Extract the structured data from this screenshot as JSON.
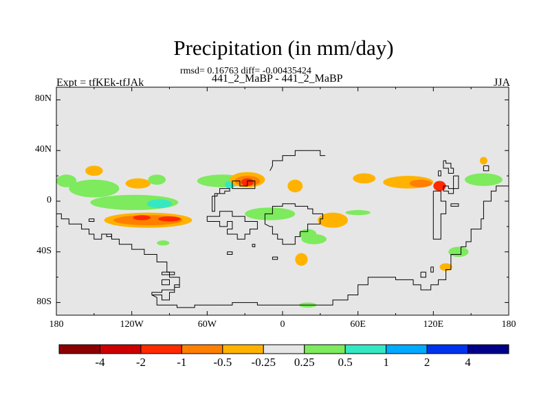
{
  "title": "Precipitation (in mm/day)",
  "stats": "rmsd= 0.16763 diff= -0.00435424",
  "case_line": "441_2_MaBP - 441_2_MaBP",
  "left_label": "Expt = tfKEk-tfJAk",
  "right_label": "JJA",
  "map": {
    "projection": "cylindrical-equidistant",
    "lon_range": [
      -180,
      180
    ],
    "lat_range": [
      -90,
      90
    ],
    "x_ticks": [
      {
        "lon": -180,
        "label": "180"
      },
      {
        "lon": -120,
        "label": "120W"
      },
      {
        "lon": -60,
        "label": "60W"
      },
      {
        "lon": 0,
        "label": "0"
      },
      {
        "lon": 60,
        "label": "60E"
      },
      {
        "lon": 120,
        "label": "120E"
      },
      {
        "lon": 180,
        "label": "180"
      }
    ],
    "y_ticks": [
      {
        "lat": 80,
        "label": "80N"
      },
      {
        "lat": 40,
        "label": "40N"
      },
      {
        "lat": 0,
        "label": "0"
      },
      {
        "lat": -40,
        "label": "40S"
      },
      {
        "lat": -80,
        "label": "80S"
      }
    ],
    "colors": {
      "background": "#e6e6e6",
      "frame": "#000000",
      "coastline": "#000000"
    }
  },
  "colorbar": {
    "colors": [
      "#8b0000",
      "#cc0000",
      "#ff2a00",
      "#ff7f00",
      "#ffb300",
      "#e6e6e6",
      "#7eea5e",
      "#36e8c2",
      "#00aaff",
      "#0033ee",
      "#000088"
    ],
    "labels": [
      "-4",
      "-2",
      "-1",
      "-0.5",
      "-0.25",
      "0.25",
      "0.5",
      "1",
      "2",
      "4"
    ]
  },
  "anomalies": [
    {
      "cat": "pos1",
      "color": "#7eea5e",
      "lon": -172,
      "lat": 16,
      "w": 16,
      "h": 10
    },
    {
      "cat": "pos1",
      "color": "#7eea5e",
      "lon": -150,
      "lat": 10,
      "w": 40,
      "h": 14
    },
    {
      "cat": "pos1",
      "color": "#7eea5e",
      "lon": -118,
      "lat": -1,
      "w": 70,
      "h": 12
    },
    {
      "cat": "pos2",
      "color": "#36e8c2",
      "lon": -98,
      "lat": -2,
      "w": 20,
      "h": 7
    },
    {
      "cat": "pos1",
      "color": "#7eea5e",
      "lon": -48,
      "lat": 16,
      "w": 40,
      "h": 10
    },
    {
      "cat": "pos2",
      "color": "#36e8c2",
      "lon": -42,
      "lat": 13,
      "w": 8,
      "h": 6
    },
    {
      "cat": "neg1",
      "color": "#ffb300",
      "lon": -150,
      "lat": 24,
      "w": 14,
      "h": 8
    },
    {
      "cat": "neg1",
      "color": "#ffb300",
      "lon": -115,
      "lat": 14,
      "w": 20,
      "h": 8
    },
    {
      "cat": "neg1",
      "color": "#ffb300",
      "lon": -107,
      "lat": -15,
      "w": 70,
      "h": 12
    },
    {
      "cat": "neg2",
      "color": "#ff7f00",
      "lon": -107,
      "lat": -15,
      "w": 55,
      "h": 8
    },
    {
      "cat": "neg3",
      "color": "#ff2a00",
      "lon": -90,
      "lat": -14,
      "w": 18,
      "h": 4
    },
    {
      "cat": "neg3",
      "color": "#ff2a00",
      "lon": -112,
      "lat": -13,
      "w": 14,
      "h": 4
    },
    {
      "cat": "neg1",
      "color": "#ffb300",
      "lon": -28,
      "lat": 17,
      "w": 28,
      "h": 12
    },
    {
      "cat": "neg2",
      "color": "#ff7f00",
      "lon": -28,
      "lat": 16,
      "w": 20,
      "h": 8
    },
    {
      "cat": "neg3",
      "color": "#ff2a00",
      "lon": -28,
      "lat": 15,
      "w": 10,
      "h": 6
    },
    {
      "cat": "neg1",
      "color": "#ffb300",
      "lon": 10,
      "lat": 12,
      "w": 12,
      "h": 10
    },
    {
      "cat": "pos1",
      "color": "#7eea5e",
      "lon": -10,
      "lat": -10,
      "w": 40,
      "h": 10
    },
    {
      "cat": "pos1",
      "color": "#7eea5e",
      "lon": 20,
      "lat": -26,
      "w": 14,
      "h": 8
    },
    {
      "cat": "pos1",
      "color": "#7eea5e",
      "lon": 25,
      "lat": -30,
      "w": 20,
      "h": 8
    },
    {
      "cat": "neg1",
      "color": "#ffb300",
      "lon": 40,
      "lat": -15,
      "w": 24,
      "h": 12
    },
    {
      "cat": "pos1",
      "color": "#7eea5e",
      "lon": 60,
      "lat": -9,
      "w": 20,
      "h": 4
    },
    {
      "cat": "neg1",
      "color": "#ffb300",
      "lon": 15,
      "lat": -46,
      "w": 10,
      "h": 10
    },
    {
      "cat": "neg1",
      "color": "#ffb300",
      "lon": 65,
      "lat": 18,
      "w": 18,
      "h": 8
    },
    {
      "cat": "neg1",
      "color": "#ffb300",
      "lon": 100,
      "lat": 15,
      "w": 40,
      "h": 10
    },
    {
      "cat": "neg2",
      "color": "#ff7f00",
      "lon": 110,
      "lat": 14,
      "w": 18,
      "h": 6
    },
    {
      "cat": "neg3",
      "color": "#ff2a00",
      "lon": 125,
      "lat": 12,
      "w": 10,
      "h": 8
    },
    {
      "cat": "pos1",
      "color": "#7eea5e",
      "lon": 160,
      "lat": 17,
      "w": 30,
      "h": 10
    },
    {
      "cat": "pos1",
      "color": "#7eea5e",
      "lon": -100,
      "lat": 17,
      "w": 14,
      "h": 8
    },
    {
      "cat": "pos1",
      "color": "#7eea5e",
      "lon": -95,
      "lat": -33,
      "w": 10,
      "h": 4
    },
    {
      "cat": "pos1",
      "color": "#7eea5e",
      "lon": 20,
      "lat": -82,
      "w": 14,
      "h": 4
    },
    {
      "cat": "pos1",
      "color": "#7eea5e",
      "lon": 140,
      "lat": -40,
      "w": 16,
      "h": 8
    },
    {
      "cat": "neg1",
      "color": "#ffb300",
      "lon": 130,
      "lat": -52,
      "w": 10,
      "h": 6
    },
    {
      "cat": "neg1",
      "color": "#ffb300",
      "lon": 160,
      "lat": 32,
      "w": 6,
      "h": 6
    }
  ],
  "coastlines": [
    [
      [
        -180,
        -10
      ],
      [
        -176,
        -10
      ],
      [
        -176,
        -14
      ],
      [
        -170,
        -14
      ],
      [
        -170,
        -18
      ],
      [
        -160,
        -18
      ],
      [
        -160,
        -22
      ],
      [
        -154,
        -22
      ],
      [
        -154,
        -26
      ],
      [
        -150,
        -26
      ],
      [
        -150,
        -30
      ],
      [
        -144,
        -30
      ],
      [
        -144,
        -26
      ],
      [
        -136,
        -26
      ],
      [
        -136,
        -30
      ],
      [
        -130,
        -30
      ],
      [
        -130,
        -34
      ],
      [
        -120,
        -34
      ],
      [
        -120,
        -38
      ],
      [
        -110,
        -38
      ],
      [
        -110,
        -42
      ],
      [
        -100,
        -42
      ],
      [
        -100,
        -48
      ],
      [
        -92,
        -48
      ],
      [
        -92,
        -56
      ],
      [
        -90,
        -56
      ],
      [
        -90,
        -60
      ],
      [
        -82,
        -60
      ],
      [
        -82,
        -66
      ],
      [
        -86,
        -66
      ],
      [
        -86,
        -72
      ],
      [
        -90,
        -72
      ],
      [
        -90,
        -78
      ],
      [
        -96,
        -78
      ],
      [
        -96,
        -74
      ],
      [
        -104,
        -74
      ],
      [
        -104,
        -72
      ],
      [
        -96,
        -72
      ],
      [
        -96,
        -70
      ],
      [
        -86,
        -70
      ],
      [
        -86,
        -68
      ],
      [
        -82,
        -68
      ],
      [
        -82,
        -66
      ]
    ],
    [
      [
        -104,
        -74
      ],
      [
        -100,
        -76
      ],
      [
        -100,
        -82
      ],
      [
        -84,
        -82
      ],
      [
        -84,
        -84
      ],
      [
        -70,
        -84
      ],
      [
        -70,
        -82
      ],
      [
        -40,
        -82
      ],
      [
        -40,
        -80
      ],
      [
        -20,
        -80
      ],
      [
        -20,
        -82
      ],
      [
        40,
        -82
      ],
      [
        40,
        -78
      ],
      [
        52,
        -78
      ],
      [
        52,
        -74
      ],
      [
        60,
        -74
      ],
      [
        60,
        -66
      ],
      [
        68,
        -66
      ],
      [
        68,
        -60
      ],
      [
        90,
        -60
      ],
      [
        90,
        -62
      ],
      [
        104,
        -62
      ],
      [
        104,
        -66
      ],
      [
        110,
        -66
      ],
      [
        110,
        -70
      ],
      [
        118,
        -70
      ],
      [
        118,
        -66
      ],
      [
        124,
        -66
      ],
      [
        124,
        -62
      ],
      [
        130,
        -62
      ],
      [
        130,
        -54
      ],
      [
        134,
        -54
      ],
      [
        134,
        -42
      ],
      [
        142,
        -42
      ],
      [
        142,
        -36
      ],
      [
        146,
        -36
      ],
      [
        146,
        -32
      ],
      [
        150,
        -32
      ],
      [
        150,
        -22
      ],
      [
        158,
        -22
      ],
      [
        158,
        -14
      ],
      [
        160,
        -14
      ],
      [
        160,
        0
      ],
      [
        166,
        0
      ],
      [
        166,
        8
      ],
      [
        170,
        8
      ],
      [
        170,
        12
      ],
      [
        180,
        12
      ]
    ],
    [
      [
        -56,
        4
      ],
      [
        -56,
        -8
      ],
      [
        -54,
        -8
      ],
      [
        -54,
        6
      ],
      [
        -50,
        6
      ],
      [
        -50,
        10
      ],
      [
        -42,
        10
      ],
      [
        -42,
        8
      ],
      [
        -46,
        8
      ],
      [
        -46,
        6
      ],
      [
        -52,
        6
      ],
      [
        -52,
        4
      ],
      [
        -56,
        4
      ]
    ],
    [
      [
        -40,
        16
      ],
      [
        -40,
        10
      ],
      [
        -22,
        10
      ],
      [
        -22,
        16
      ],
      [
        -28,
        16
      ],
      [
        -28,
        12
      ],
      [
        -34,
        12
      ],
      [
        -34,
        16
      ],
      [
        -40,
        16
      ]
    ],
    [
      [
        -10,
        24
      ],
      [
        -8,
        28
      ],
      [
        -8,
        32
      ],
      [
        0,
        32
      ],
      [
        0,
        36
      ],
      [
        10,
        36
      ],
      [
        10,
        40
      ],
      [
        30,
        40
      ],
      [
        30,
        36
      ],
      [
        34,
        36
      ]
    ],
    [
      [
        -10,
        -20
      ],
      [
        -8,
        -20
      ],
      [
        -8,
        -26
      ],
      [
        -4,
        -26
      ],
      [
        -4,
        -30
      ],
      [
        0,
        -30
      ],
      [
        0,
        -34
      ],
      [
        10,
        -34
      ],
      [
        10,
        -28
      ],
      [
        14,
        -28
      ],
      [
        14,
        -24
      ],
      [
        20,
        -24
      ],
      [
        20,
        -18
      ],
      [
        30,
        -18
      ],
      [
        30,
        -14
      ],
      [
        32,
        -14
      ],
      [
        32,
        -10
      ],
      [
        24,
        -10
      ],
      [
        24,
        -6
      ],
      [
        20,
        -6
      ],
      [
        20,
        -4
      ],
      [
        10,
        -4
      ],
      [
        10,
        -2
      ],
      [
        0,
        -2
      ],
      [
        0,
        -4
      ],
      [
        -8,
        -4
      ],
      [
        -8,
        -10
      ],
      [
        -14,
        -10
      ],
      [
        -14,
        -18
      ],
      [
        -10,
        -20
      ]
    ],
    [
      [
        -60,
        -16
      ],
      [
        -50,
        -16
      ],
      [
        -50,
        -20
      ],
      [
        -44,
        -20
      ],
      [
        -44,
        -16
      ],
      [
        -40,
        -16
      ],
      [
        -40,
        -22
      ],
      [
        -44,
        -22
      ],
      [
        -44,
        -26
      ],
      [
        -36,
        -26
      ],
      [
        -36,
        -30
      ],
      [
        -30,
        -30
      ],
      [
        -30,
        -26
      ],
      [
        -26,
        -26
      ],
      [
        -26,
        -22
      ],
      [
        -20,
        -22
      ],
      [
        -20,
        -16
      ],
      [
        -30,
        -16
      ],
      [
        -30,
        -12
      ],
      [
        -40,
        -12
      ],
      [
        -40,
        -8
      ],
      [
        -50,
        -8
      ],
      [
        -50,
        -12
      ],
      [
        -60,
        -12
      ],
      [
        -60,
        -16
      ]
    ],
    [
      [
        -96,
        -56
      ],
      [
        -86,
        -56
      ],
      [
        -86,
        -58
      ],
      [
        -96,
        -58
      ],
      [
        -96,
        -56
      ]
    ],
    [
      [
        -96,
        -62
      ],
      [
        -90,
        -62
      ],
      [
        -90,
        -66
      ],
      [
        -96,
        -66
      ],
      [
        -96,
        -62
      ]
    ],
    [
      [
        -24,
        -36
      ],
      [
        -24,
        -34
      ],
      [
        -22,
        -34
      ],
      [
        -22,
        -36
      ],
      [
        -24,
        -36
      ]
    ],
    [
      [
        -44,
        -40
      ],
      [
        -40,
        -40
      ],
      [
        -40,
        -42
      ],
      [
        -44,
        -42
      ],
      [
        -44,
        -40
      ]
    ],
    [
      [
        -154,
        -14
      ],
      [
        -150,
        -14
      ],
      [
        -150,
        -16
      ],
      [
        -154,
        -16
      ],
      [
        -154,
        -14
      ]
    ],
    [
      [
        -140,
        -26
      ],
      [
        -136,
        -26
      ],
      [
        -136,
        -28
      ],
      [
        -140,
        -28
      ],
      [
        -140,
        -26
      ]
    ],
    [
      [
        120,
        8
      ],
      [
        120,
        -30
      ],
      [
        126,
        -30
      ],
      [
        126,
        -10
      ],
      [
        130,
        -10
      ],
      [
        130,
        0
      ],
      [
        126,
        0
      ],
      [
        126,
        8
      ],
      [
        120,
        8
      ]
    ],
    [
      [
        134,
        -2
      ],
      [
        140,
        -2
      ],
      [
        140,
        -4
      ],
      [
        134,
        -4
      ],
      [
        134,
        -2
      ]
    ],
    [
      [
        128,
        32
      ],
      [
        130,
        32
      ],
      [
        130,
        30
      ],
      [
        134,
        30
      ],
      [
        134,
        26
      ],
      [
        136,
        26
      ],
      [
        136,
        22
      ],
      [
        132,
        22
      ],
      [
        132,
        26
      ],
      [
        128,
        26
      ],
      [
        128,
        32
      ]
    ],
    [
      [
        128,
        12
      ],
      [
        132,
        12
      ],
      [
        132,
        10
      ],
      [
        136,
        10
      ],
      [
        136,
        6
      ],
      [
        132,
        6
      ],
      [
        132,
        8
      ],
      [
        128,
        8
      ],
      [
        128,
        12
      ]
    ],
    [
      [
        136,
        20
      ],
      [
        140,
        20
      ],
      [
        140,
        10
      ],
      [
        136,
        10
      ],
      [
        136,
        20
      ]
    ],
    [
      [
        160,
        28
      ],
      [
        164,
        28
      ],
      [
        164,
        24
      ],
      [
        160,
        24
      ],
      [
        160,
        28
      ]
    ],
    [
      [
        124,
        24
      ],
      [
        126,
        24
      ],
      [
        126,
        20
      ],
      [
        124,
        20
      ],
      [
        124,
        24
      ]
    ],
    [
      [
        -8,
        -44
      ],
      [
        -4,
        -44
      ],
      [
        -4,
        -46
      ],
      [
        -8,
        -46
      ],
      [
        -8,
        -44
      ]
    ],
    [
      [
        118,
        -52
      ],
      [
        120,
        -52
      ],
      [
        120,
        -56
      ],
      [
        118,
        -56
      ],
      [
        118,
        -52
      ]
    ],
    [
      [
        110,
        -56
      ],
      [
        114,
        -56
      ],
      [
        114,
        -60
      ],
      [
        110,
        -60
      ],
      [
        110,
        -56
      ]
    ]
  ]
}
